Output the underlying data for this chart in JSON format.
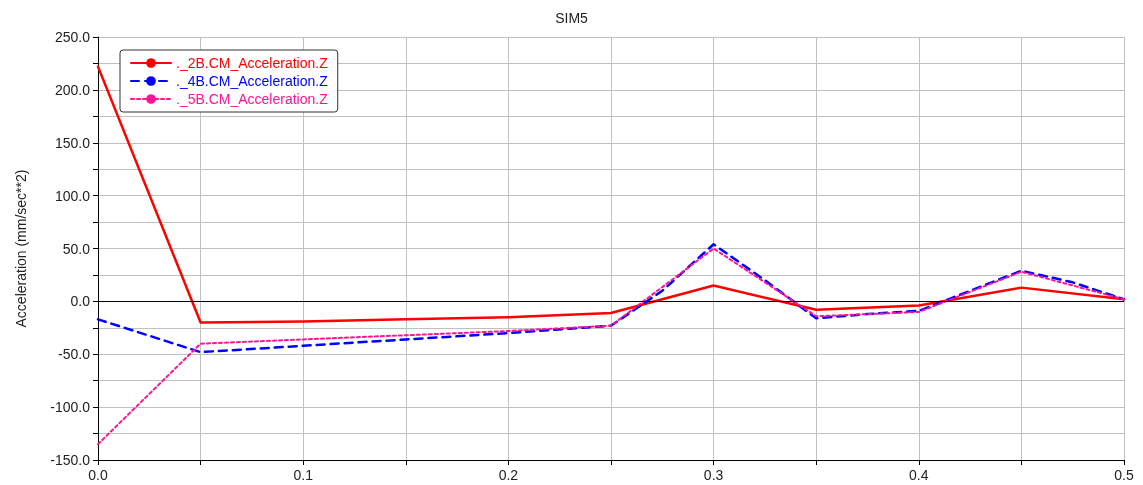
{
  "chart_data": {
    "type": "line",
    "title": "SIM5",
    "ylabel": "Acceleration (mm/sec**2)",
    "xlim": [
      0,
      0.5
    ],
    "xticks": [
      {
        "value": 0,
        "label": "0.0"
      },
      {
        "value": 0.05,
        "label": null
      },
      {
        "value": 0.1,
        "label": "0.1"
      },
      {
        "value": 0.15,
        "label": null
      },
      {
        "value": 0.2,
        "label": "0.2"
      },
      {
        "value": 0.25,
        "label": null
      },
      {
        "value": 0.3,
        "label": "0.3"
      },
      {
        "value": 0.35,
        "label": null
      },
      {
        "value": 0.4,
        "label": "0.4"
      },
      {
        "value": 0.45,
        "label": null
      },
      {
        "value": 0.5,
        "label": "0.5"
      }
    ],
    "ylim": [
      -150,
      250
    ],
    "yticks": [
      {
        "value": -150,
        "label": "-150.0"
      },
      {
        "value": -125,
        "label": null
      },
      {
        "value": -100,
        "label": "-100.0"
      },
      {
        "value": -75,
        "label": null
      },
      {
        "value": -50,
        "label": "-50.0"
      },
      {
        "value": -25,
        "label": null
      },
      {
        "value": 0,
        "label": "0.0"
      },
      {
        "value": 25,
        "label": null
      },
      {
        "value": 50,
        "label": "50.0"
      },
      {
        "value": 75,
        "label": null
      },
      {
        "value": 100,
        "label": "100.0"
      },
      {
        "value": 125,
        "label": null
      },
      {
        "value": 150,
        "label": "150.0"
      },
      {
        "value": 175,
        "label": null
      },
      {
        "value": 200,
        "label": "200.0"
      },
      {
        "value": 225,
        "label": null
      },
      {
        "value": 250,
        "label": "250.0"
      }
    ],
    "grid": true,
    "legend": "top left",
    "marker": "none",
    "ref_lines": [
      {
        "axis": "y",
        "value": 0,
        "color": "#000000"
      }
    ],
    "series": [
      {
        "name": "._2B.CM_Acceleration.Z",
        "color": "#ff0000",
        "line_style": "solid",
        "x": [
          0,
          0.05,
          0.1,
          0.15,
          0.2,
          0.25,
          0.3,
          0.35,
          0.4,
          0.45,
          0.5
        ],
        "values": [
          222,
          -20,
          -19,
          -17,
          -15,
          -11,
          15,
          -8,
          -4,
          13,
          2
        ]
      },
      {
        "name": "._4B.CM_Acceleration.Z",
        "color": "#0000ff",
        "line_style": "dashed",
        "x": [
          0,
          0.05,
          0.1,
          0.15,
          0.2,
          0.25,
          0.275,
          0.3,
          0.325,
          0.35,
          0.375,
          0.4,
          0.425,
          0.45,
          0.475,
          0.5
        ],
        "values": [
          -17,
          -48,
          -42,
          -36,
          -30,
          -23,
          10,
          54,
          20,
          -16,
          -12,
          -9,
          10,
          29,
          18,
          2
        ]
      },
      {
        "name": "._5B.CM_Acceleration.Z",
        "color": "#ff1493",
        "line_style": "dotted",
        "x": [
          0,
          0.05,
          0.1,
          0.15,
          0.2,
          0.25,
          0.3,
          0.35,
          0.4,
          0.45,
          0.5
        ],
        "values": [
          -135,
          -40,
          -36,
          -32,
          -28,
          -23,
          50,
          -14,
          -10,
          28,
          2
        ]
      }
    ]
  }
}
